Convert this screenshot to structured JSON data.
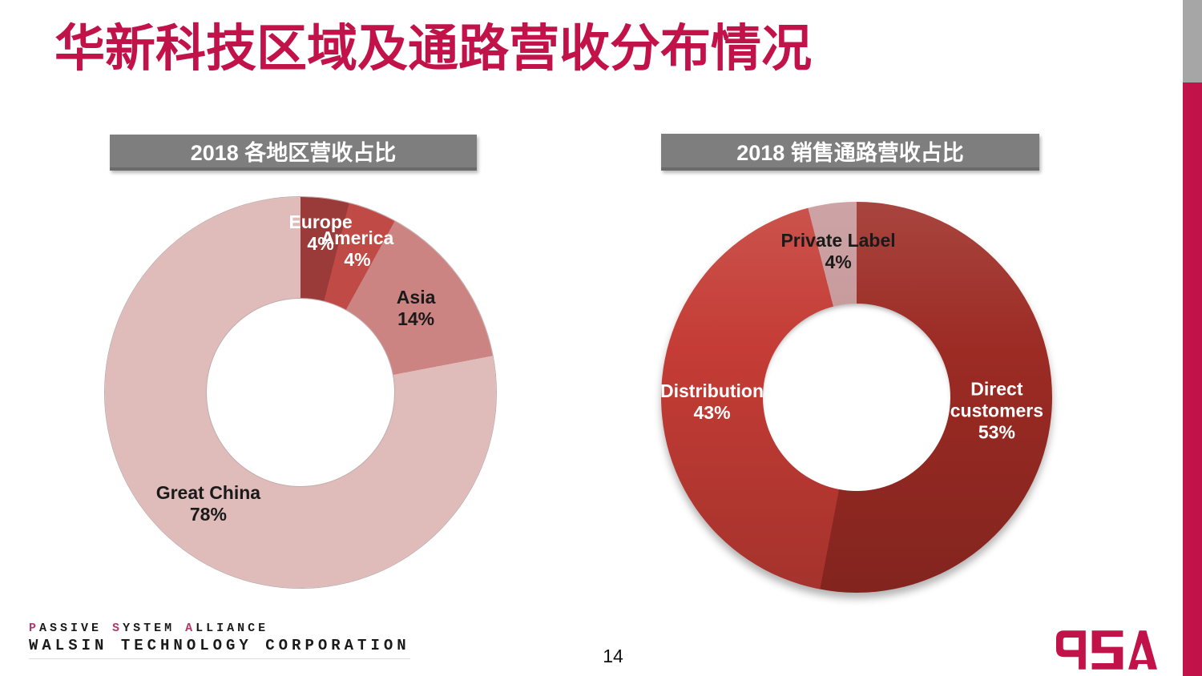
{
  "slide": {
    "title": "华新科技区域及通路营收分布情况",
    "page_number": "14"
  },
  "chart_data": [
    {
      "type": "pie",
      "subtype": "donut",
      "title": "2018 各地区营收占比",
      "categories": [
        "Europe",
        "America",
        "Asia",
        "Great China"
      ],
      "values": [
        4,
        4,
        14,
        78
      ],
      "percent_labels": [
        "4%",
        "4%",
        "14%",
        "78%"
      ],
      "label_lines": [
        [
          "Europe",
          "4%"
        ],
        [
          "America",
          "4%"
        ],
        [
          "Asia",
          "14%"
        ],
        [
          "Great China",
          "78%"
        ]
      ],
      "colors": [
        "#9B3B39",
        "#C04B46",
        "#CC8482",
        "#DFBCBA"
      ],
      "label_colors": [
        "#FFFFFF",
        "#FFFFFF",
        "#1A1A1A",
        "#1A1A1A"
      ],
      "start_angle_deg": 0,
      "direction": "clockwise",
      "inner_radius_ratio": 0.48,
      "label_r": [
        0.82,
        0.79,
        0.73,
        0.74
      ],
      "legend": "none"
    },
    {
      "type": "pie",
      "subtype": "donut",
      "title": "2018 销售通路营收占比",
      "categories": [
        "Direct customers",
        "Distribution",
        "Private Label"
      ],
      "values": [
        53,
        43,
        4
      ],
      "percent_labels": [
        "53%",
        "43%",
        "4%"
      ],
      "label_lines": [
        [
          "Direct",
          "customers",
          "53%"
        ],
        [
          "Distribution",
          "43%"
        ],
        [
          "Private Label",
          "4%"
        ]
      ],
      "colors": [
        "#9C2B24",
        "#C43C35",
        "#C69799"
      ],
      "label_colors": [
        "#FFFFFF",
        "#FFFFFF",
        "#1A1A1A"
      ],
      "start_angle_deg": 0,
      "direction": "clockwise",
      "inner_radius_ratio": 0.48,
      "label_r": [
        0.72,
        0.74,
        0.75
      ],
      "legend": "none"
    }
  ],
  "footer": {
    "brand_words": [
      {
        "lead": "P",
        "rest": "ASSIVE"
      },
      {
        "lead": "S",
        "rest": "YSTEM"
      },
      {
        "lead": "A",
        "rest": "LLIANCE"
      }
    ],
    "brand_line2": "WALSIN TECHNOLOGY CORPORATION",
    "psa_logo_text": "PSA"
  },
  "colors": {
    "accent_crimson": "#C2124A",
    "header_gray": "#7E7E7E",
    "stripe_gray": "#A6A6A6",
    "brand_lead": "#B23A6B"
  }
}
